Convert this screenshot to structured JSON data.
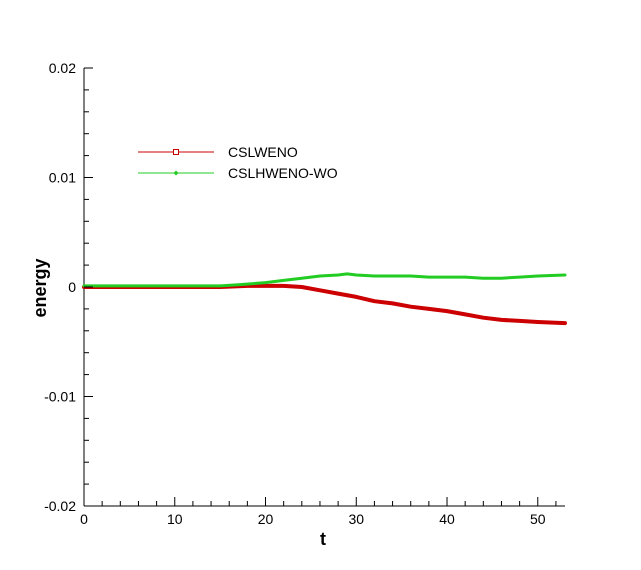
{
  "chart_data": {
    "type": "line",
    "title": "",
    "xlabel": "t",
    "ylabel": "energy",
    "xlim": [
      0,
      53
    ],
    "ylim": [
      -0.02,
      0.02
    ],
    "x_ticks": [
      0,
      10,
      20,
      30,
      40,
      50
    ],
    "x_tick_labels": [
      "0",
      "10",
      "20",
      "30",
      "40",
      "50"
    ],
    "y_ticks": [
      -0.02,
      -0.01,
      0,
      0.01,
      0.02
    ],
    "y_tick_labels": [
      "-0.02",
      "-0.01",
      "0",
      "0.01",
      "0.02"
    ],
    "grid": false,
    "legend_position": "upper-left",
    "series": [
      {
        "name": "CSLWENO",
        "color": "#cc0000",
        "marker": "square",
        "x": [
          0,
          5,
          10,
          15,
          18,
          20,
          22,
          24,
          26,
          28,
          30,
          32,
          34,
          36,
          38,
          40,
          42,
          44,
          46,
          48,
          50,
          53
        ],
        "y": [
          0,
          0,
          0,
          0,
          0.0001,
          0.0001,
          0.0001,
          0,
          -0.0003,
          -0.0006,
          -0.0009,
          -0.0013,
          -0.0015,
          -0.0018,
          -0.002,
          -0.0022,
          -0.0025,
          -0.0028,
          -0.003,
          -0.0031,
          -0.0032,
          -0.0033
        ]
      },
      {
        "name": "CSLHWENO-WO",
        "color": "#22cc22",
        "marker": "diamond",
        "x": [
          0,
          5,
          10,
          15,
          17,
          20,
          22,
          24,
          26,
          28,
          29,
          30,
          32,
          34,
          36,
          38,
          40,
          42,
          44,
          46,
          48,
          50,
          53
        ],
        "y": [
          0.0001,
          0.0001,
          0.0001,
          0.0001,
          0.0002,
          0.0004,
          0.0006,
          0.0008,
          0.001,
          0.0011,
          0.0012,
          0.0011,
          0.001,
          0.001,
          0.001,
          0.0009,
          0.0009,
          0.0009,
          0.0008,
          0.0008,
          0.0009,
          0.001,
          0.0011
        ]
      }
    ]
  }
}
